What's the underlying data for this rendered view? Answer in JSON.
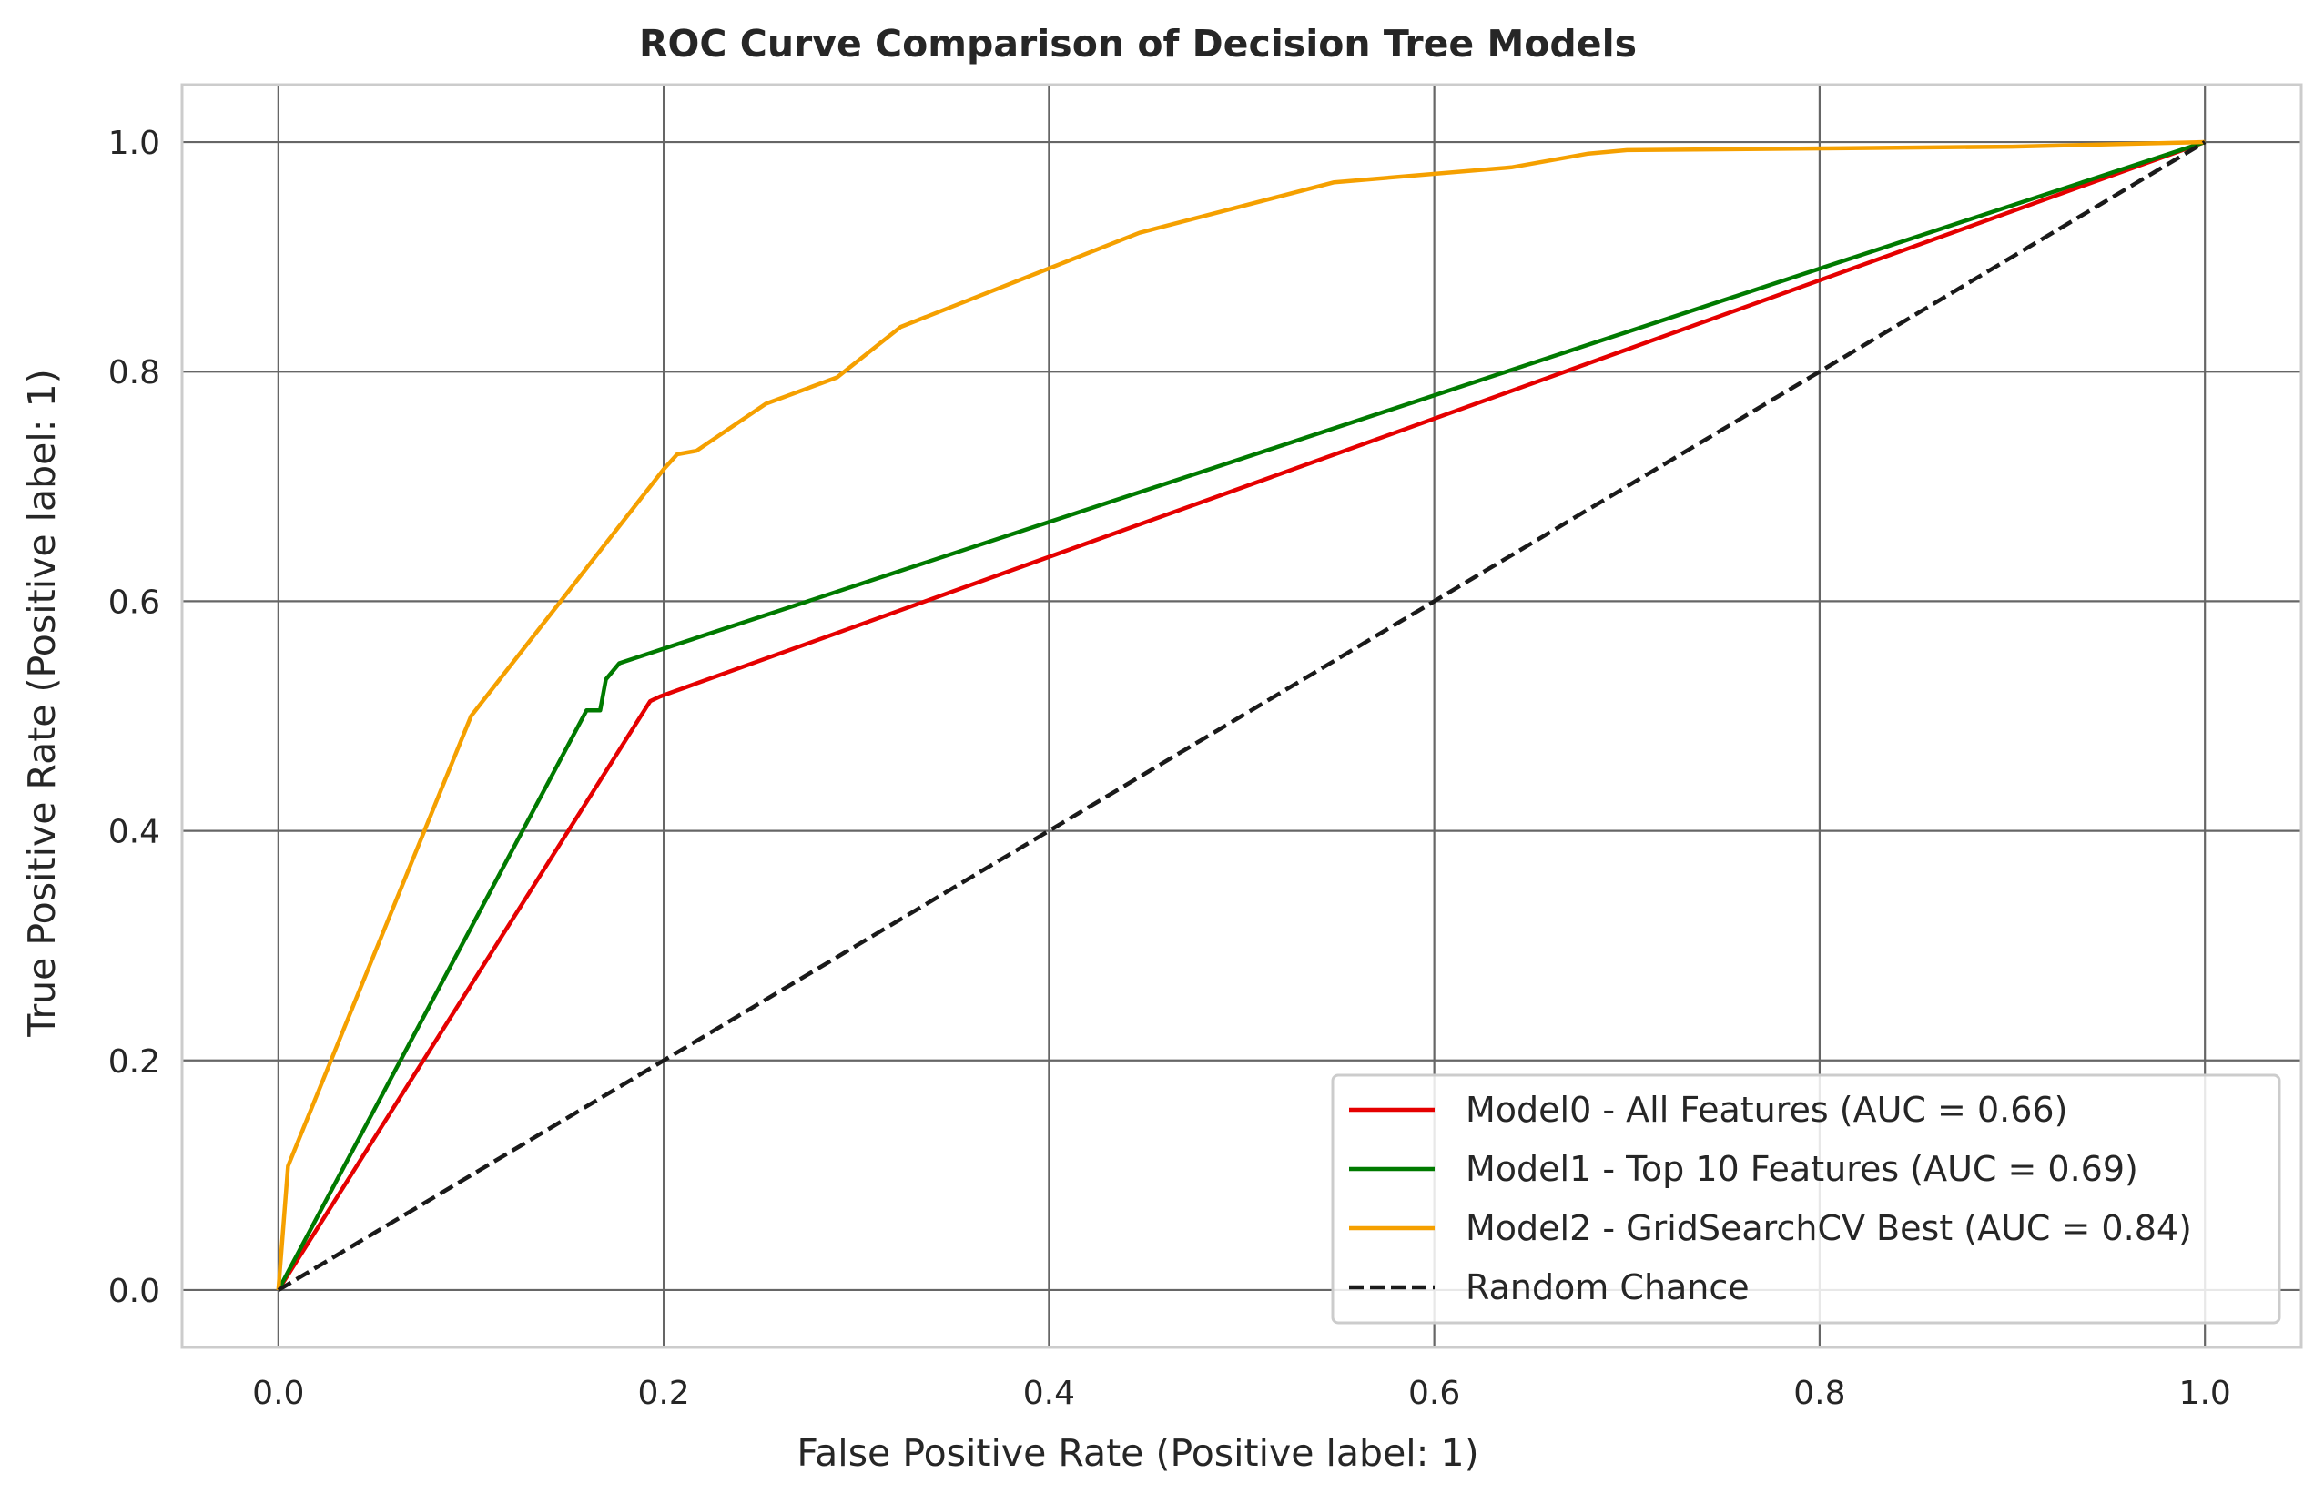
{
  "chart_data": {
    "type": "line",
    "title": "ROC Curve Comparison of Decision Tree Models",
    "xlabel": "False Positive Rate (Positive label: 1)",
    "ylabel": "True Positive Rate (Positive label: 1)",
    "xlim": [
      -0.05,
      1.05
    ],
    "ylim": [
      -0.05,
      1.05
    ],
    "xticks": [
      "0.0",
      "0.2",
      "0.4",
      "0.6",
      "0.8",
      "1.0"
    ],
    "yticks": [
      "0.0",
      "0.2",
      "0.4",
      "0.6",
      "0.8",
      "1.0"
    ],
    "grid": true,
    "legend_position": "lower-right",
    "series": [
      {
        "name": "Model0 - All Features (AUC = 0.66)",
        "color": "#e50000",
        "style": "solid",
        "points": [
          [
            0.0,
            0.0
          ],
          [
            0.193,
            0.513
          ],
          [
            0.198,
            0.517
          ],
          [
            1.0,
            1.0
          ]
        ]
      },
      {
        "name": "Model1 - Top 10 Features (AUC = 0.69)",
        "color": "#007a00",
        "style": "solid",
        "points": [
          [
            0.0,
            0.0
          ],
          [
            0.16,
            0.505
          ],
          [
            0.167,
            0.505
          ],
          [
            0.17,
            0.532
          ],
          [
            0.177,
            0.546
          ],
          [
            1.0,
            1.0
          ]
        ]
      },
      {
        "name": "Model2 - GridSearchCV Best (AUC = 0.84)",
        "color": "#f5a000",
        "style": "solid",
        "points": [
          [
            0.0,
            0.0
          ],
          [
            0.005,
            0.108
          ],
          [
            0.1,
            0.5
          ],
          [
            0.2,
            0.715
          ],
          [
            0.207,
            0.728
          ],
          [
            0.217,
            0.731
          ],
          [
            0.253,
            0.772
          ],
          [
            0.29,
            0.795
          ],
          [
            0.323,
            0.839
          ],
          [
            0.447,
            0.921
          ],
          [
            0.548,
            0.965
          ],
          [
            0.64,
            0.978
          ],
          [
            0.68,
            0.99
          ],
          [
            0.7,
            0.993
          ],
          [
            0.9,
            0.996
          ],
          [
            1.0,
            1.0
          ]
        ]
      },
      {
        "name": "Random Chance",
        "color": "#1a1a1a",
        "style": "dashed",
        "points": [
          [
            0.0,
            0.0
          ],
          [
            1.0,
            1.0
          ]
        ]
      }
    ]
  }
}
